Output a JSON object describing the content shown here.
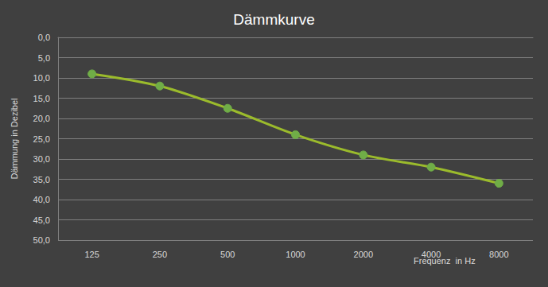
{
  "chart_data": {
    "type": "line",
    "title": "Dämmkurve",
    "x_label": "Frequenz  in Hz",
    "y_label": "Dämmung in Dezibel",
    "categories": [
      "125",
      "250",
      "500",
      "1000",
      "2000",
      "4000",
      "8000"
    ],
    "values": [
      9,
      12,
      17.5,
      24,
      29,
      32,
      36
    ],
    "color": "#9bbb2c",
    "marker": "circle",
    "line_style": "solid",
    "ylim": [
      50,
      0
    ],
    "yticks": [
      {
        "value": 0,
        "label": "0,0"
      },
      {
        "value": 5,
        "label": "5,0"
      },
      {
        "value": 10,
        "label": "10,0"
      },
      {
        "value": 15,
        "label": "15,0"
      },
      {
        "value": 20,
        "label": "20,0"
      },
      {
        "value": 25,
        "label": "25,0"
      },
      {
        "value": 30,
        "label": "30,0"
      },
      {
        "value": 35,
        "label": "35,0"
      },
      {
        "value": 40,
        "label": "40,0"
      },
      {
        "value": 45,
        "label": "45,0"
      },
      {
        "value": 50,
        "label": "50,0"
      }
    ],
    "grid": true
  }
}
